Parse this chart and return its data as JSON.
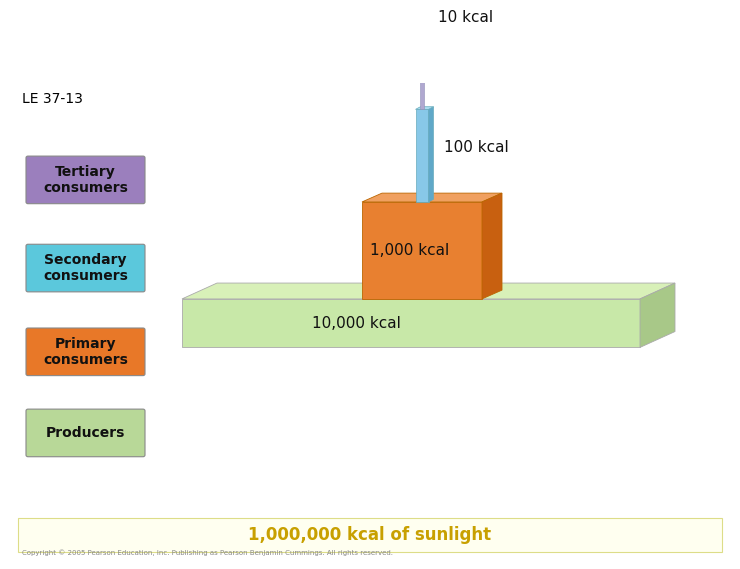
{
  "title": "LE 37-13",
  "title_fontsize": 10,
  "title_color": "#000000",
  "background_color": "#ffffff",
  "labels": {
    "tertiary": "Tertiary\nconsumers",
    "secondary": "Secondary\nconsumers",
    "primary": "Primary\nconsumers",
    "producers": "Producers"
  },
  "label_box_colors": {
    "tertiary": "#9b7fbd",
    "secondary": "#5bc8dc",
    "primary": "#e87828",
    "producers": "#b8d898"
  },
  "kcal_labels": {
    "tertiary": "10 kcal",
    "secondary": "100 kcal",
    "primary": "1,000 kcal",
    "producers": "10,000 kcal"
  },
  "bottom_label": "1,000,000 kcal of sunlight",
  "bottom_bg": "#fffff0",
  "copyright": "Copyright © 2005 Pearson Education, Inc. Publishing as Pearson Benjamin Cummings. All rights reserved.",
  "slab_front_color": "#c8e8a8",
  "slab_top_color": "#d8f0b8",
  "slab_right_color": "#a8c888",
  "block_front_color": "#e88030",
  "block_top_color": "#f0a060",
  "block_right_color": "#c86010",
  "thin_bar_color": "#88c8e8",
  "thin_bar_right_color": "#60a8c8",
  "thin_line_color": "#b0a8d0"
}
